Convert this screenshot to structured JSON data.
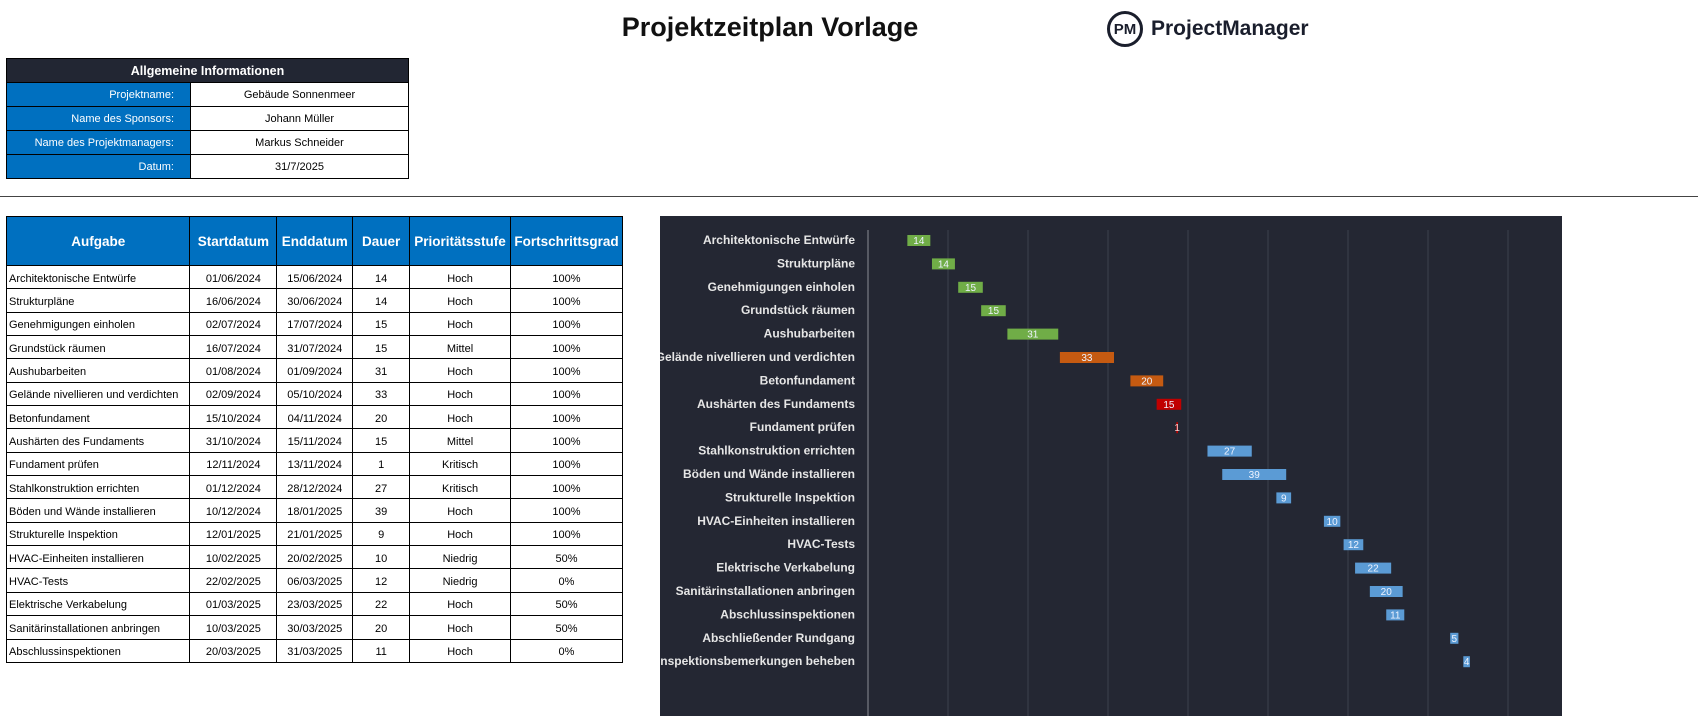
{
  "title": "Projektzeitplan Vorlage",
  "logo": {
    "mark": "PM",
    "name": "ProjectManager"
  },
  "info": {
    "header": "Allgemeine Informationen",
    "rows": [
      {
        "label": "Projektname:",
        "value": "Gebäude Sonnenmeer"
      },
      {
        "label": "Name des Sponsors:",
        "value": "Johann Müller"
      },
      {
        "label": "Name des Projektmanagers:",
        "value": "Markus Schneider"
      },
      {
        "label": "Datum:",
        "value": "31/7/2025"
      }
    ]
  },
  "table": {
    "headers": [
      "Aufgabe",
      "Startdatum",
      "Enddatum",
      "Dauer",
      "Prioritätsstufe",
      "Fortschrittsgrad"
    ],
    "rows": [
      [
        "Architektonische Entwürfe",
        "01/06/2024",
        "15/06/2024",
        "14",
        "Hoch",
        "100%"
      ],
      [
        "Strukturpläne",
        "16/06/2024",
        "30/06/2024",
        "14",
        "Hoch",
        "100%"
      ],
      [
        "Genehmigungen einholen",
        "02/07/2024",
        "17/07/2024",
        "15",
        "Hoch",
        "100%"
      ],
      [
        "Grundstück räumen",
        "16/07/2024",
        "31/07/2024",
        "15",
        "Mittel",
        "100%"
      ],
      [
        "Aushubarbeiten",
        "01/08/2024",
        "01/09/2024",
        "31",
        "Hoch",
        "100%"
      ],
      [
        "Gelände nivellieren und verdichten",
        "02/09/2024",
        "05/10/2024",
        "33",
        "Hoch",
        "100%"
      ],
      [
        "Betonfundament",
        "15/10/2024",
        "04/11/2024",
        "20",
        "Hoch",
        "100%"
      ],
      [
        "Aushärten des Fundaments",
        "31/10/2024",
        "15/11/2024",
        "15",
        "Mittel",
        "100%"
      ],
      [
        "Fundament prüfen",
        "12/11/2024",
        "13/11/2024",
        "1",
        "Kritisch",
        "100%"
      ],
      [
        "Stahlkonstruktion errichten",
        "01/12/2024",
        "28/12/2024",
        "27",
        "Kritisch",
        "100%"
      ],
      [
        "Böden und Wände installieren",
        "10/12/2024",
        "18/01/2025",
        "39",
        "Hoch",
        "100%"
      ],
      [
        "Strukturelle Inspektion",
        "12/01/2025",
        "21/01/2025",
        "9",
        "Hoch",
        "100%"
      ],
      [
        "HVAC-Einheiten installieren",
        "10/02/2025",
        "20/02/2025",
        "10",
        "Niedrig",
        "50%"
      ],
      [
        "HVAC-Tests",
        "22/02/2025",
        "06/03/2025",
        "12",
        "Niedrig",
        "0%"
      ],
      [
        "Elektrische Verkabelung",
        "01/03/2025",
        "23/03/2025",
        "22",
        "Hoch",
        "50%"
      ],
      [
        "Sanitärinstallationen anbringen",
        "10/03/2025",
        "30/03/2025",
        "20",
        "Hoch",
        "50%"
      ],
      [
        "Abschlussinspektionen",
        "20/03/2025",
        "31/03/2025",
        "11",
        "Hoch",
        "0%"
      ]
    ]
  },
  "chart_data": {
    "type": "gantt",
    "x_axis": "date",
    "grid": true,
    "colors": {
      "green": "#70ad47",
      "orange": "#c55a11",
      "red": "#c00000",
      "blue": "#5b9bd5"
    },
    "tasks": [
      {
        "name": "Architektonische Entwürfe",
        "start": "2024-06-01",
        "duration": 14,
        "color": "green"
      },
      {
        "name": "Strukturpläne",
        "start": "2024-06-16",
        "duration": 14,
        "color": "green"
      },
      {
        "name": "Genehmigungen einholen",
        "start": "2024-07-02",
        "duration": 15,
        "color": "green"
      },
      {
        "name": "Grundstück räumen",
        "start": "2024-07-16",
        "duration": 15,
        "color": "green"
      },
      {
        "name": "Aushubarbeiten",
        "start": "2024-08-01",
        "duration": 31,
        "color": "green"
      },
      {
        "name": "Gelände nivellieren und verdichten",
        "start": "2024-09-02",
        "duration": 33,
        "color": "orange"
      },
      {
        "name": "Betonfundament",
        "start": "2024-10-15",
        "duration": 20,
        "color": "orange"
      },
      {
        "name": "Aushärten des Fundaments",
        "start": "2024-10-31",
        "duration": 15,
        "color": "red"
      },
      {
        "name": "Fundament prüfen",
        "start": "2024-11-12",
        "duration": 1,
        "color": "red"
      },
      {
        "name": "Stahlkonstruktion errichten",
        "start": "2024-12-01",
        "duration": 27,
        "color": "blue"
      },
      {
        "name": "Böden und Wände installieren",
        "start": "2024-12-10",
        "duration": 39,
        "color": "blue"
      },
      {
        "name": "Strukturelle Inspektion",
        "start": "2025-01-12",
        "duration": 9,
        "color": "blue"
      },
      {
        "name": "HVAC-Einheiten installieren",
        "start": "2025-02-10",
        "duration": 10,
        "color": "blue"
      },
      {
        "name": "HVAC-Tests",
        "start": "2025-02-22",
        "duration": 12,
        "color": "blue"
      },
      {
        "name": "Elektrische Verkabelung",
        "start": "2025-03-01",
        "duration": 22,
        "color": "blue"
      },
      {
        "name": "Sanitärinstallationen anbringen",
        "start": "2025-03-10",
        "duration": 20,
        "color": "blue"
      },
      {
        "name": "Abschlussinspektionen",
        "start": "2025-03-20",
        "duration": 11,
        "color": "blue"
      },
      {
        "name": "Abschließender Rundgang",
        "start": "2025-04-28",
        "duration": 5,
        "color": "blue"
      },
      {
        "name": "Inspektionsbemerkungen beheben",
        "start": "2025-05-06",
        "duration": 4,
        "color": "blue"
      }
    ]
  }
}
